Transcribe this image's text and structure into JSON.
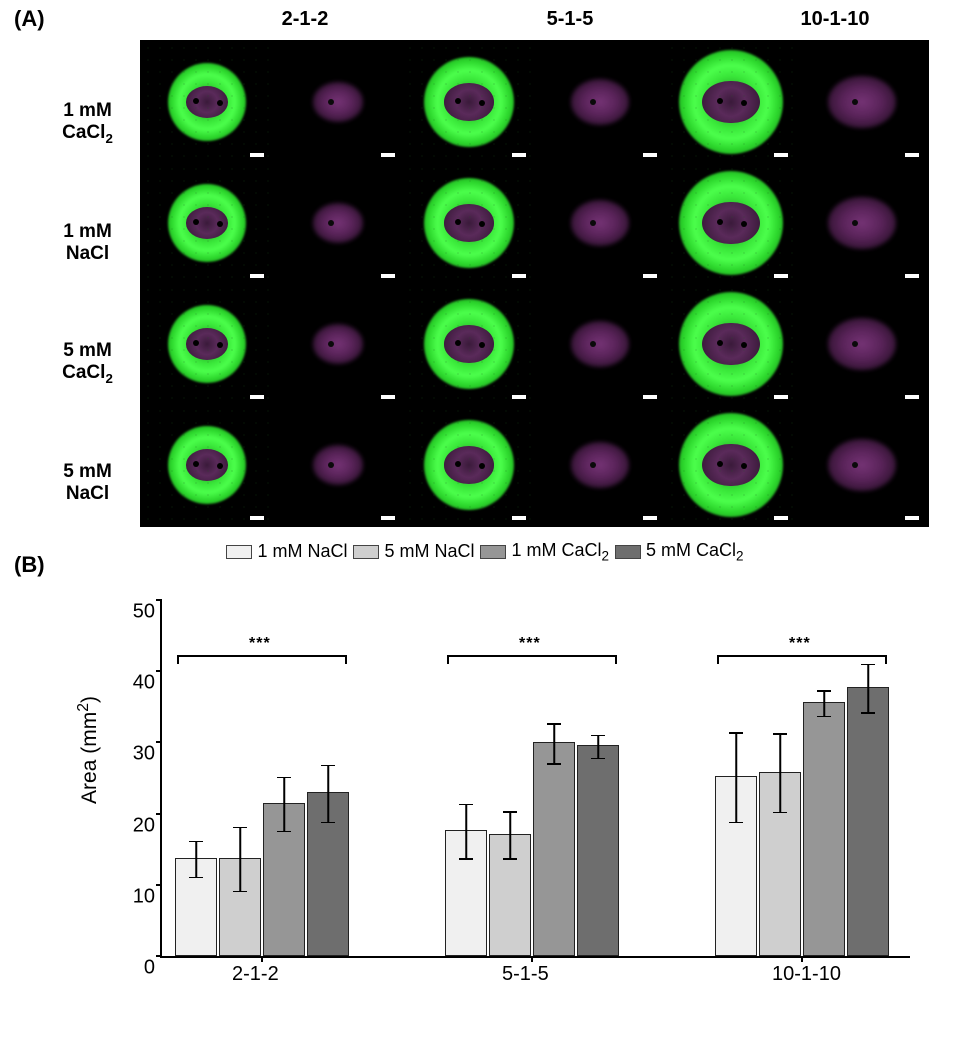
{
  "panels": {
    "A": "(A)",
    "B": "(B)"
  },
  "panelA": {
    "col_headers": [
      "2-1-2",
      "5-1-5",
      "10-1-10"
    ],
    "row_labels": [
      "1 mM CaCl₂",
      "1 mM NaCl",
      "5 mM CaCl₂",
      "5 mM NaCl"
    ],
    "green_color": "#3de63d",
    "magenta_color": "#7a357a",
    "bg_color": "#000000",
    "scale_bar_color": "#ffffff",
    "cell_sizes": {
      "2-1-2": 78,
      "5-1-5": 90,
      "10-1-10": 104
    }
  },
  "panelB": {
    "type": "bar",
    "ylabel": "Area (mm²)",
    "ylim": [
      0,
      50
    ],
    "ytick_step": 10,
    "yticks": [
      0,
      10,
      20,
      30,
      40,
      50
    ],
    "categories": [
      "2-1-2",
      "5-1-5",
      "10-1-10"
    ],
    "series": [
      {
        "name": "1 mM NaCl",
        "color": "#f0f0f0"
      },
      {
        "name": "5 mM NaCl",
        "color": "#cfcfcf"
      },
      {
        "name": "1 mM CaCl₂",
        "color": "#969696"
      },
      {
        "name": "5 mM CaCl₂",
        "color": "#6e6e6e"
      }
    ],
    "data": {
      "2-1-2": {
        "values": [
          13.8,
          13.8,
          21.5,
          23.0
        ],
        "err": [
          2.5,
          4.5,
          3.8,
          4.0
        ]
      },
      "5-1-5": {
        "values": [
          17.7,
          17.2,
          30.0,
          29.6
        ],
        "err": [
          3.8,
          3.3,
          2.8,
          1.6
        ]
      },
      "10-1-10": {
        "values": [
          25.3,
          25.9,
          35.7,
          37.8
        ],
        "err": [
          6.3,
          5.5,
          1.8,
          3.4
        ]
      }
    },
    "significance": [
      {
        "group": "2-1-2",
        "label": "***"
      },
      {
        "group": "5-1-5",
        "label": "***"
      },
      {
        "group": "10-1-10",
        "label": "***"
      }
    ],
    "sig_bar_y": 42,
    "axis_color": "#000000",
    "bar_border_color": "#222222",
    "background_color": "#ffffff",
    "label_fontsize": 21,
    "tick_fontsize": 20,
    "legend_fontsize": 18
  }
}
